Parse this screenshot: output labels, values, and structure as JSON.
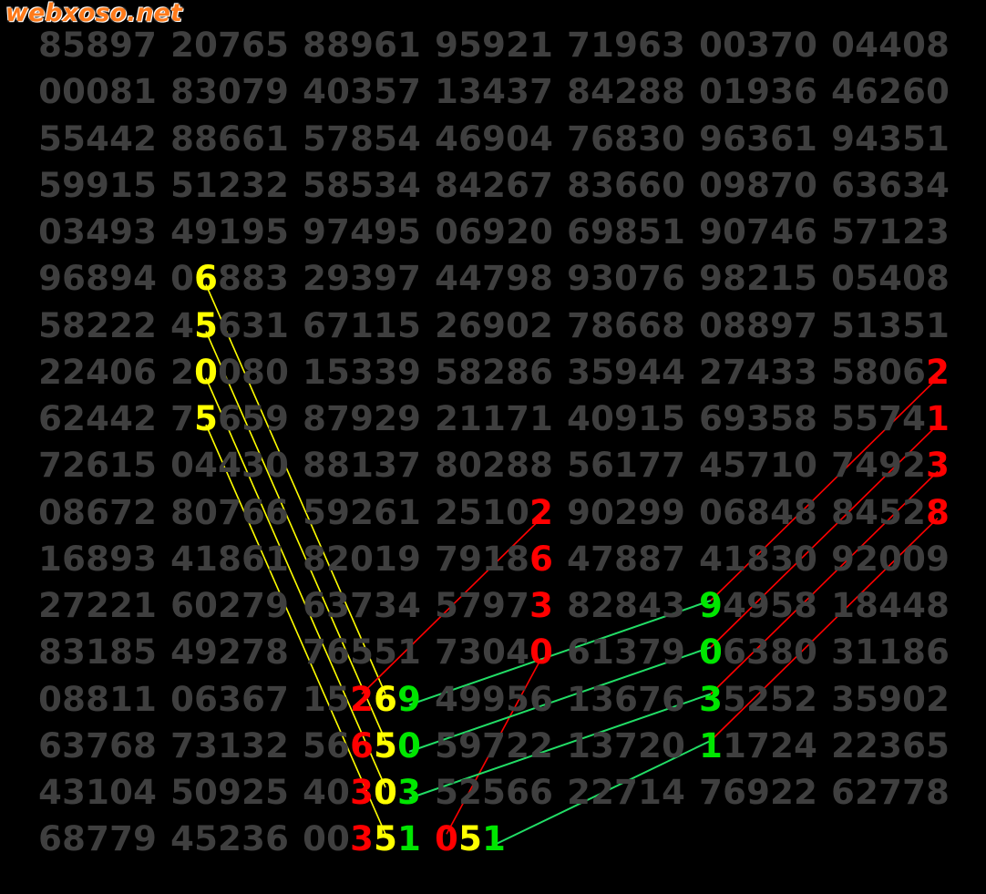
{
  "watermark": "webxoso.net",
  "colors": {
    "base": "#3f3f3f",
    "yellow": "#ffff00",
    "red": "#ff0000",
    "green": "#00e600",
    "green_line": "#22dd66",
    "background": "#000000"
  },
  "rows": [
    [
      "85897",
      "20765",
      "88961",
      "95921",
      "71963",
      "00370",
      "04408"
    ],
    [
      "00081",
      "83079",
      "40357",
      "13437",
      "84288",
      "01936",
      "46260"
    ],
    [
      "55442",
      "88661",
      "57854",
      "46904",
      "76830",
      "96361",
      "94351"
    ],
    [
      "59915",
      "51232",
      "58534",
      "84267",
      "83660",
      "09870",
      "63634"
    ],
    [
      "03493",
      "49195",
      "97495",
      "06920",
      "69851",
      "90746",
      "57123"
    ],
    [
      "96894",
      "06883",
      "29397",
      "44798",
      "93076",
      "98215",
      "05408"
    ],
    [
      "58222",
      "45631",
      "67115",
      "26902",
      "78668",
      "08897",
      "51351"
    ],
    [
      "22406",
      "20080",
      "15339",
      "58286",
      "35944",
      "27433",
      "58062"
    ],
    [
      "62442",
      "75659",
      "87929",
      "21171",
      "40915",
      "69358",
      "55741"
    ],
    [
      "72615",
      "04430",
      "88137",
      "80288",
      "56177",
      "45710",
      "74923"
    ],
    [
      "08672",
      "80766",
      "59261",
      "25102",
      "90299",
      "06848",
      "84528"
    ],
    [
      "16893",
      "41861",
      "82019",
      "79186",
      "47887",
      "41830",
      "92009"
    ],
    [
      "27221",
      "60279",
      "63734",
      "57973",
      "82843",
      "94958",
      "18448"
    ],
    [
      "83185",
      "49278",
      "76551",
      "73040",
      "61379",
      "06380",
      "31186"
    ],
    [
      "08811",
      "06367",
      "15269",
      "49956",
      "13676",
      "35252",
      "35902"
    ],
    [
      "63768",
      "73132",
      "56650",
      "59722",
      "13720",
      "11724",
      "22365"
    ],
    [
      "43104",
      "50925",
      "40303",
      "52566",
      "22714",
      "76922",
      "62778"
    ],
    [
      "68779",
      "45236",
      "00351",
      "051"
    ]
  ],
  "highlights": [
    {
      "row": 5,
      "col": 1,
      "digit": 1,
      "color": "yellow"
    },
    {
      "row": 6,
      "col": 1,
      "digit": 1,
      "color": "yellow"
    },
    {
      "row": 7,
      "col": 1,
      "digit": 1,
      "color": "yellow"
    },
    {
      "row": 8,
      "col": 1,
      "digit": 1,
      "color": "yellow"
    },
    {
      "row": 14,
      "col": 2,
      "digit": 3,
      "color": "yellow"
    },
    {
      "row": 15,
      "col": 2,
      "digit": 3,
      "color": "yellow"
    },
    {
      "row": 16,
      "col": 2,
      "digit": 3,
      "color": "yellow"
    },
    {
      "row": 17,
      "col": 2,
      "digit": 3,
      "color": "yellow"
    },
    {
      "row": 17,
      "col": 3,
      "digit": 1,
      "color": "yellow"
    },
    {
      "row": 10,
      "col": 3,
      "digit": 4,
      "color": "red"
    },
    {
      "row": 11,
      "col": 3,
      "digit": 4,
      "color": "red"
    },
    {
      "row": 12,
      "col": 3,
      "digit": 4,
      "color": "red"
    },
    {
      "row": 13,
      "col": 3,
      "digit": 4,
      "color": "red"
    },
    {
      "row": 7,
      "col": 6,
      "digit": 4,
      "color": "red"
    },
    {
      "row": 8,
      "col": 6,
      "digit": 4,
      "color": "red"
    },
    {
      "row": 9,
      "col": 6,
      "digit": 4,
      "color": "red"
    },
    {
      "row": 10,
      "col": 6,
      "digit": 4,
      "color": "red"
    },
    {
      "row": 14,
      "col": 2,
      "digit": 2,
      "color": "red"
    },
    {
      "row": 15,
      "col": 2,
      "digit": 2,
      "color": "red"
    },
    {
      "row": 16,
      "col": 2,
      "digit": 2,
      "color": "red"
    },
    {
      "row": 17,
      "col": 2,
      "digit": 2,
      "color": "red"
    },
    {
      "row": 17,
      "col": 3,
      "digit": 0,
      "color": "red"
    },
    {
      "row": 14,
      "col": 2,
      "digit": 4,
      "color": "green"
    },
    {
      "row": 15,
      "col": 2,
      "digit": 4,
      "color": "green"
    },
    {
      "row": 16,
      "col": 2,
      "digit": 4,
      "color": "green"
    },
    {
      "row": 17,
      "col": 2,
      "digit": 4,
      "color": "green"
    },
    {
      "row": 12,
      "col": 5,
      "digit": 0,
      "color": "green"
    },
    {
      "row": 13,
      "col": 5,
      "digit": 0,
      "color": "green"
    },
    {
      "row": 14,
      "col": 5,
      "digit": 0,
      "color": "green"
    },
    {
      "row": 15,
      "col": 5,
      "digit": 0,
      "color": "green"
    },
    {
      "row": 17,
      "col": 3,
      "digit": 2,
      "color": "green"
    }
  ],
  "links": [
    {
      "from": [
        5,
        1,
        1
      ],
      "to": [
        14,
        2,
        3
      ],
      "color": "yellow"
    },
    {
      "from": [
        6,
        1,
        1
      ],
      "to": [
        15,
        2,
        3
      ],
      "color": "yellow"
    },
    {
      "from": [
        7,
        1,
        1
      ],
      "to": [
        16,
        2,
        3
      ],
      "color": "yellow"
    },
    {
      "from": [
        8,
        1,
        1
      ],
      "to": [
        17,
        2,
        3
      ],
      "color": "yellow"
    },
    {
      "from": [
        10,
        3,
        4
      ],
      "to": [
        14,
        2,
        2
      ],
      "color": "red"
    },
    {
      "from": [
        13,
        3,
        4
      ],
      "to": [
        17,
        3,
        0
      ],
      "color": "red"
    },
    {
      "from": [
        7,
        6,
        4
      ],
      "to": [
        12,
        5,
        0
      ],
      "color": "red"
    },
    {
      "from": [
        8,
        6,
        4
      ],
      "to": [
        13,
        5,
        0
      ],
      "color": "red"
    },
    {
      "from": [
        9,
        6,
        4
      ],
      "to": [
        14,
        5,
        0
      ],
      "color": "red"
    },
    {
      "from": [
        10,
        6,
        4
      ],
      "to": [
        15,
        5,
        0
      ],
      "color": "red"
    },
    {
      "from": [
        14,
        2,
        4
      ],
      "to": [
        12,
        5,
        0
      ],
      "color": "green_line"
    },
    {
      "from": [
        15,
        2,
        4
      ],
      "to": [
        13,
        5,
        0
      ],
      "color": "green_line"
    },
    {
      "from": [
        16,
        2,
        4
      ],
      "to": [
        14,
        5,
        0
      ],
      "color": "green_line"
    },
    {
      "from": [
        17,
        3,
        2
      ],
      "to": [
        15,
        5,
        0
      ],
      "color": "green_line"
    }
  ]
}
